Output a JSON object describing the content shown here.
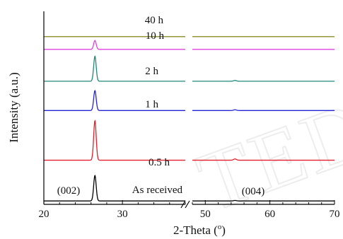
{
  "chart_data": {
    "type": "line",
    "xlabel_main": "2-Theta (",
    "xlabel_sup": "o",
    "xlabel_close": ")",
    "ylabel": "Intensity (a.u.)",
    "axis_break": true,
    "x_segments": [
      {
        "range": [
          20,
          38
        ],
        "ticks": [
          "20",
          "30"
        ]
      },
      {
        "range": [
          48,
          70
        ],
        "ticks": [
          "50",
          "60",
          "70"
        ]
      }
    ],
    "y_ticks_shown": false,
    "grid": false,
    "peak_labels": [
      "(002)",
      "(004)"
    ],
    "watermark": "TED",
    "series": [
      {
        "name": "As received",
        "color": "#000000",
        "baseline": 0.0,
        "peak002": 1.0,
        "peak004": 0.02
      },
      {
        "name": "0.5 h",
        "color": "#e0202a",
        "baseline": 1.6,
        "peak002": 1.55,
        "peak004": 0.05
      },
      {
        "name": "1 h",
        "color": "#2323d6",
        "baseline": 3.55,
        "peak002": 0.78,
        "peak004": 0.03
      },
      {
        "name": "2 h",
        "color": "#1f8a7a",
        "baseline": 4.7,
        "peak002": 0.98,
        "peak004": 0.03
      },
      {
        "name": "10 h",
        "color": "#e040e0",
        "baseline": 5.95,
        "peak002": 0.35,
        "peak004": 0.0
      },
      {
        "name": "40 h",
        "color": "#8c8c2a",
        "baseline": 6.45,
        "peak002": 0.0,
        "peak004": 0.0
      }
    ],
    "peak002_center": 26.5,
    "peak004_center": 54.6,
    "ylim": [
      -0.05,
      7.0
    ]
  }
}
